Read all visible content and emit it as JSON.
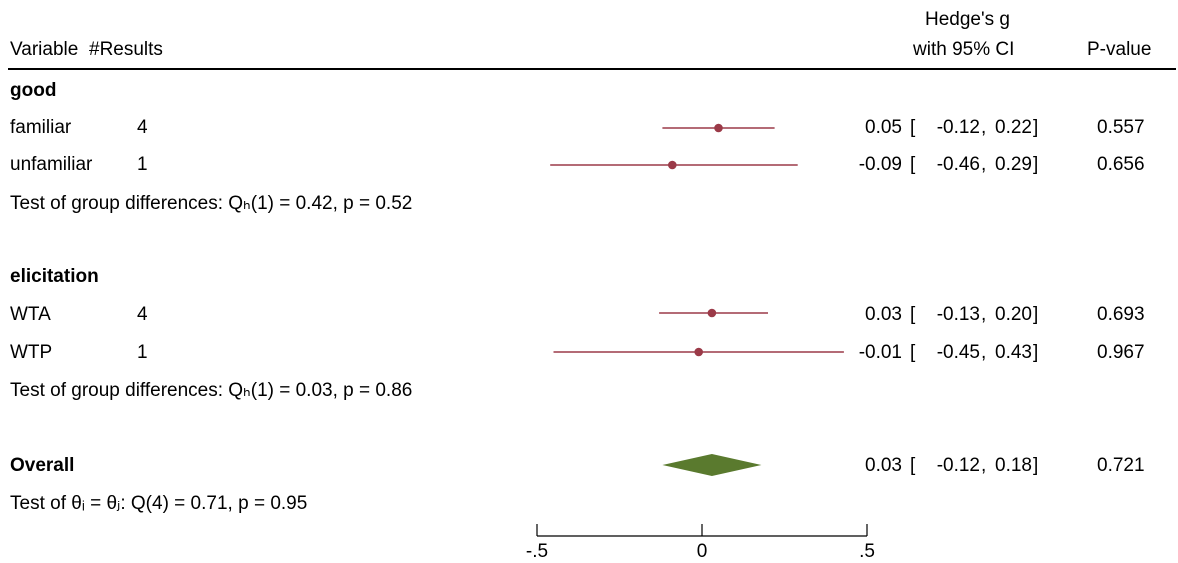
{
  "header": {
    "variable": "Variable",
    "results": "#Results",
    "effect_line1": "Hedge's g",
    "effect_line2": "with 95% CI",
    "pvalue": "P-value"
  },
  "groups": [
    {
      "name": "good",
      "rows": [
        {
          "label": "familiar",
          "n": "4",
          "est": "0.05",
          "lo": "-0.12",
          "hi": "0.22",
          "p": "0.557"
        },
        {
          "label": "unfamiliar",
          "n": "1",
          "est": "-0.09",
          "lo": "-0.46",
          "hi": "0.29",
          "p": "0.656"
        }
      ],
      "test": "Test of group differences: Qₕ(1) = 0.42, p = 0.52"
    },
    {
      "name": "elicitation",
      "rows": [
        {
          "label": "WTA",
          "n": "4",
          "est": "0.03",
          "lo": "-0.13",
          "hi": "0.20",
          "p": "0.693"
        },
        {
          "label": "WTP",
          "n": "1",
          "est": "-0.01",
          "lo": "-0.45",
          "hi": "0.43",
          "p": "0.967"
        }
      ],
      "test": "Test of group differences: Qₕ(1) = 0.03, p = 0.86"
    }
  ],
  "overall": {
    "label": "Overall",
    "est": "0.03",
    "lo": "-0.12",
    "hi": "0.18",
    "p": "0.721",
    "test": "Test of θᵢ = θⱼ: Q(4) = 0.71, p = 0.95"
  },
  "chart_data": {
    "type": "scatter",
    "subtype": "forest",
    "xlim": [
      -0.5,
      0.5
    ],
    "xticks": [
      -0.5,
      0,
      0.5
    ],
    "xtick_labels": [
      "-.5",
      "0",
      ".5"
    ],
    "points": [
      {
        "label": "familiar",
        "group": "good",
        "est": 0.05,
        "lo": -0.12,
        "hi": 0.22
      },
      {
        "label": "unfamiliar",
        "group": "good",
        "est": -0.09,
        "lo": -0.46,
        "hi": 0.29
      },
      {
        "label": "WTA",
        "group": "elicitation",
        "est": 0.03,
        "lo": -0.13,
        "hi": 0.2
      },
      {
        "label": "WTP",
        "group": "elicitation",
        "est": -0.01,
        "lo": -0.45,
        "hi": 0.43
      }
    ],
    "overall": {
      "est": 0.03,
      "lo": -0.12,
      "hi": 0.18
    },
    "colors": {
      "ci": "#9b3a48",
      "point": "#9b3a48",
      "diamond": "#5a7a2e"
    }
  }
}
